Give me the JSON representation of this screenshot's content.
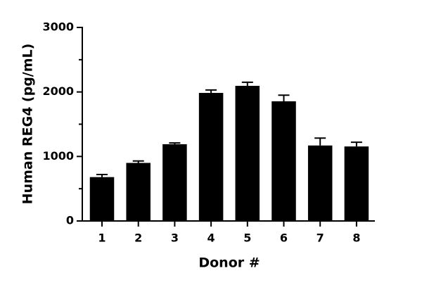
{
  "chart_data": {
    "type": "bar",
    "x_label": "Donor #",
    "y_label": "Human REG4 (pg/mL)",
    "categories": [
      "1",
      "2",
      "3",
      "4",
      "5",
      "6",
      "7",
      "8"
    ],
    "values": [
      680,
      900,
      1190,
      1985,
      2095,
      1855,
      1170,
      1155
    ],
    "errors": [
      40,
      30,
      20,
      45,
      55,
      95,
      115,
      65
    ],
    "color": "#000000",
    "ylim": [
      0,
      3000
    ],
    "yticks": [
      0,
      1000,
      2000,
      3000
    ],
    "yminorticks": [
      500,
      1500,
      2500
    ],
    "grid": false
  }
}
